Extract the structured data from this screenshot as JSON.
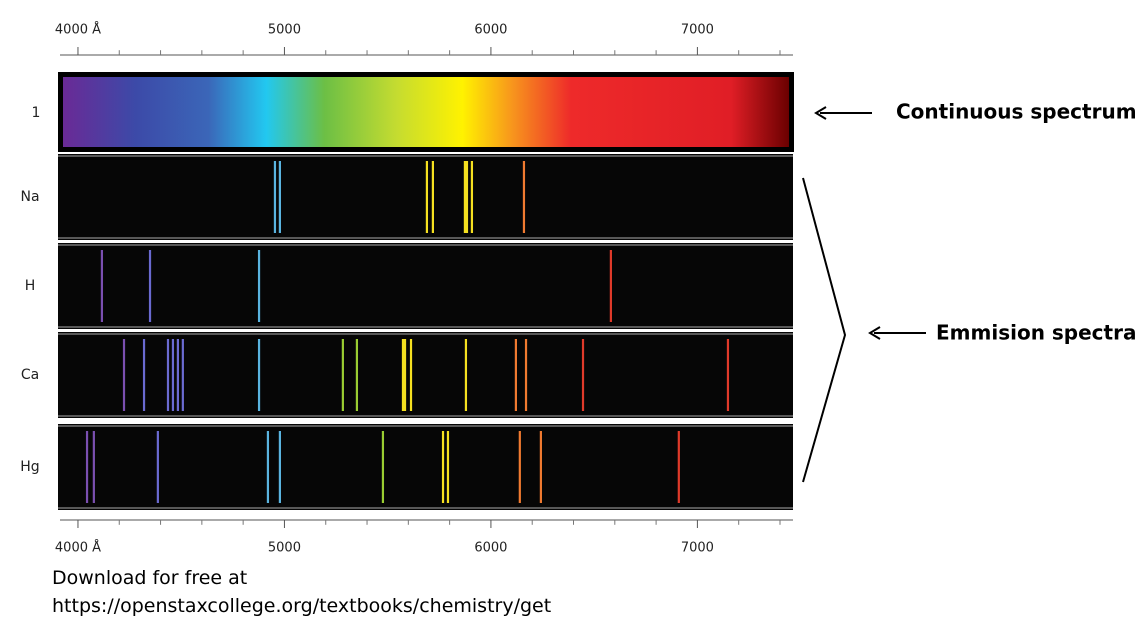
{
  "axis": {
    "xlim": [
      3913,
      7463
    ],
    "ticks": [
      {
        "value": 4000,
        "label": "4000 Å"
      },
      5000,
      6000,
      7000
    ]
  },
  "continuous": {
    "label": "1"
  },
  "rows": [
    {
      "label": "Na",
      "lines": [
        4954,
        4978,
        5690,
        5719,
        5874,
        5884,
        5908,
        6160
      ]
    },
    {
      "label": "H",
      "lines": [
        4116,
        4349,
        4877,
        6581
      ]
    },
    {
      "label": "Ca",
      "lines": [
        4223,
        4320,
        4436,
        4460,
        4484,
        4508,
        4877,
        5283,
        5351,
        5574,
        5584,
        5613,
        5879,
        6121,
        6170,
        6446,
        7148
      ]
    },
    {
      "label": "Hg",
      "lines": [
        4044,
        4077,
        4387,
        4920,
        4978,
        5477,
        5768,
        5792,
        6140,
        6242,
        6910
      ]
    }
  ],
  "annotations": {
    "continuous": "Continuous spectrum",
    "emission": "Emmision spectra"
  },
  "footer": {
    "line1": "Download for free at",
    "line2": "https://openstaxcollege.org/textbooks/chemistry/get"
  }
}
